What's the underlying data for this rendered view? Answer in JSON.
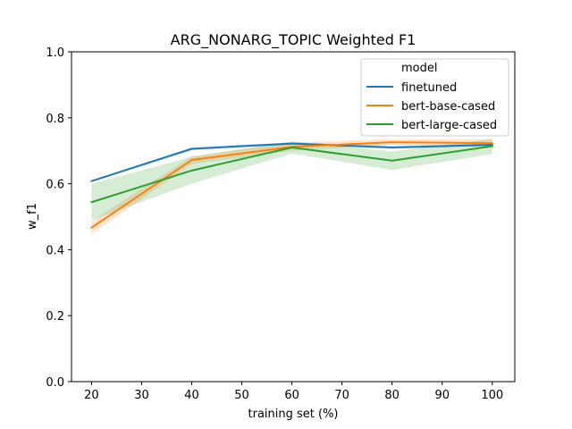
{
  "chart_data": {
    "type": "line",
    "title": "ARG_NONARG_TOPIC Weighted F1",
    "xlabel": "training set (%)",
    "ylabel": "w_f1",
    "xlim": [
      16,
      104.5
    ],
    "ylim": [
      0.0,
      1.0
    ],
    "xticks": [
      20,
      30,
      40,
      50,
      60,
      70,
      80,
      90,
      100
    ],
    "yticks": [
      0.0,
      0.2,
      0.4,
      0.6,
      0.8,
      1.0
    ],
    "xtick_labels": [
      "20",
      "30",
      "40",
      "50",
      "60",
      "70",
      "80",
      "90",
      "100"
    ],
    "ytick_labels": [
      "0.0",
      "0.2",
      "0.4",
      "0.6",
      "0.8",
      "1.0"
    ],
    "x": [
      20,
      40,
      60,
      80,
      100
    ],
    "grid": false,
    "legend": {
      "title": "model",
      "placement": "top-right"
    },
    "series": [
      {
        "name": "finetuned",
        "color": "#1f77b4",
        "values": [
          0.608,
          0.706,
          0.722,
          0.71,
          0.718
        ],
        "ci_low": [
          0.606,
          0.702,
          0.718,
          0.706,
          0.714
        ],
        "ci_high": [
          0.61,
          0.71,
          0.726,
          0.714,
          0.722
        ]
      },
      {
        "name": "bert-base-cased",
        "color": "#ff7f0e",
        "values": [
          0.467,
          0.672,
          0.712,
          0.726,
          0.723
        ],
        "ci_low": [
          0.447,
          0.66,
          0.7,
          0.718,
          0.712
        ],
        "ci_high": [
          0.487,
          0.684,
          0.725,
          0.735,
          0.735
        ]
      },
      {
        "name": "bert-large-cased",
        "color": "#2ca02c",
        "values": [
          0.544,
          0.64,
          0.71,
          0.67,
          0.714
        ],
        "ci_low": [
          0.49,
          0.6,
          0.692,
          0.642,
          0.69
        ],
        "ci_high": [
          0.6,
          0.682,
          0.728,
          0.698,
          0.736
        ]
      }
    ]
  }
}
